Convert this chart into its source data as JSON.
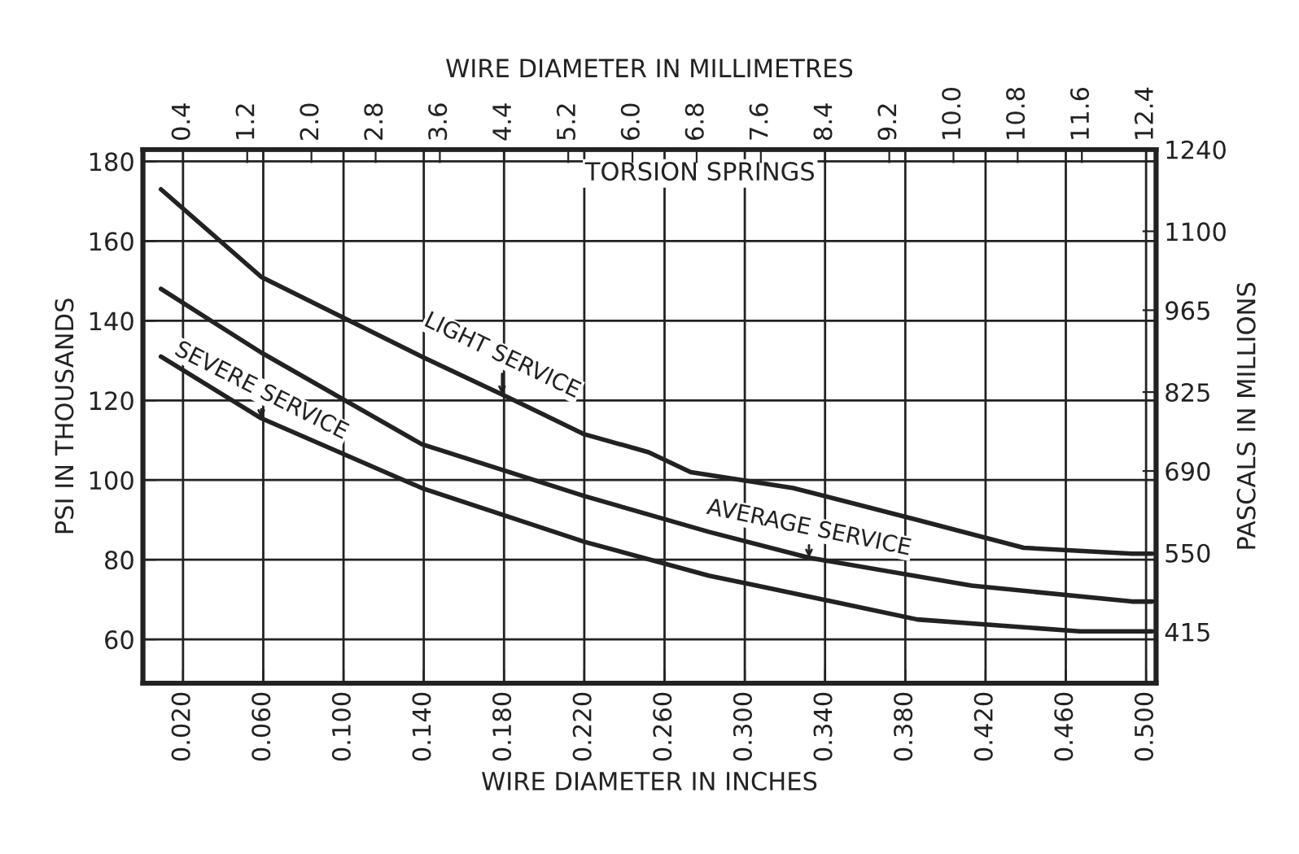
{
  "chart_data": {
    "type": "line",
    "title": "TORSION SPRINGS",
    "xlabel": "WIRE DIAMETER IN INCHES",
    "x2label": "WIRE DIAMETER IN MILLIMETRES",
    "ylabel": "PSI IN THOUSANDS",
    "y2label": "PASCALS IN MILLIONS",
    "xlim": [
      0,
      0.505
    ],
    "xticks": [
      {
        "value": 0.02,
        "label": "0.020"
      },
      {
        "value": 0.06,
        "label": "0.060"
      },
      {
        "value": 0.1,
        "label": "0.100"
      },
      {
        "value": 0.14,
        "label": "0.140"
      },
      {
        "value": 0.18,
        "label": "0.180"
      },
      {
        "value": 0.22,
        "label": "0.220"
      },
      {
        "value": 0.26,
        "label": "0.260"
      },
      {
        "value": 0.3,
        "label": "0.300"
      },
      {
        "value": 0.34,
        "label": "0.340"
      },
      {
        "value": 0.38,
        "label": "0.380"
      },
      {
        "value": 0.42,
        "label": "0.420"
      },
      {
        "value": 0.46,
        "label": "0.460"
      },
      {
        "value": 0.5,
        "label": "0.500"
      }
    ],
    "x2lim": [
      -0.1,
      12.525
    ],
    "x2ticks": [
      0.4,
      1.2,
      {
        "value": 2.0,
        "label": "2.0"
      },
      2.8,
      3.6,
      4.4,
      5.2,
      {
        "value": 6.0,
        "label": "6.0"
      },
      6.8,
      7.6,
      8.4,
      9.2,
      {
        "value": 10.0,
        "label": "10.0"
      },
      10.8,
      11.6,
      12.4
    ],
    "ylim": [
      49,
      183
    ],
    "yticks": [
      60,
      80,
      100,
      120,
      140,
      160,
      180
    ],
    "y2lim": [
      327,
      1240
    ],
    "y2ticks": [
      415,
      550,
      690,
      825,
      965,
      1100,
      1240
    ],
    "grid": true,
    "legend": false,
    "marker": "none",
    "line_style": "solid",
    "series": [
      {
        "name": "LIGHT SERVICE",
        "color": "#222222",
        "x": [
          0.009,
          0.059,
          0.139,
          0.179,
          0.22,
          0.252,
          0.273,
          0.324,
          0.386,
          0.439,
          0.493,
          0.503
        ],
        "values": [
          173,
          151,
          131,
          121.5,
          111.5,
          107,
          102,
          98,
          90,
          83,
          81.5,
          81.5
        ]
      },
      {
        "name": "AVERAGE SERVICE",
        "color": "#222222",
        "x": [
          0.009,
          0.059,
          0.139,
          0.22,
          0.282,
          0.332,
          0.413,
          0.493,
          0.503
        ],
        "values": [
          148,
          132,
          109,
          96,
          87,
          80.5,
          73.5,
          69.5,
          69.5
        ]
      },
      {
        "name": "SEVERE SERVICE",
        "color": "#222222",
        "x": [
          0.009,
          0.059,
          0.139,
          0.22,
          0.282,
          0.306,
          0.386,
          0.467,
          0.499,
          0.503
        ],
        "values": [
          131,
          115.5,
          98,
          84.5,
          76,
          73.5,
          65,
          62,
          62,
          62
        ]
      }
    ]
  }
}
